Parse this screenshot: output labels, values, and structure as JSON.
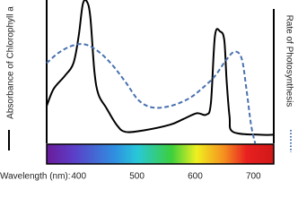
{
  "chart_data": {
    "type": "line",
    "x_label": "Wavelength (nm):",
    "xlim": [
      345,
      735
    ],
    "xticks": [
      400,
      500,
      600,
      700
    ],
    "ylim": [
      0,
      100
    ],
    "series": [
      {
        "name": "Absorbance of Chlorophyll a",
        "color": "#000000",
        "style": "solid",
        "x": [
          345,
          357,
          376,
          391,
          400,
          407,
          414,
          420,
          427,
          434,
          447,
          465,
          480,
          511,
          557,
          580,
          603,
          619,
          627,
          634,
          643,
          650,
          654,
          659,
          665,
          711,
          734
        ],
        "values": [
          26,
          38,
          47,
          56,
          75,
          97,
          99,
          88,
          50,
          34,
          25,
          13,
          8,
          9,
          13,
          17,
          21,
          20,
          28,
          75,
          78,
          72,
          44,
          19,
          8,
          6,
          6
        ]
      },
      {
        "name": "Rate of Photosynthesis",
        "color": "#4a72b0",
        "style": "dashed",
        "x": [
          345,
          365,
          388,
          411,
          434,
          457,
          480,
          503,
          527,
          557,
          588,
          611,
          634,
          653,
          668,
          680,
          688,
          696,
          703
        ],
        "values": [
          56,
          63,
          68,
          69,
          64,
          55,
          43,
          30,
          25,
          26,
          31,
          38,
          47,
          58,
          64,
          59,
          38,
          13,
          0
        ]
      }
    ]
  }
}
